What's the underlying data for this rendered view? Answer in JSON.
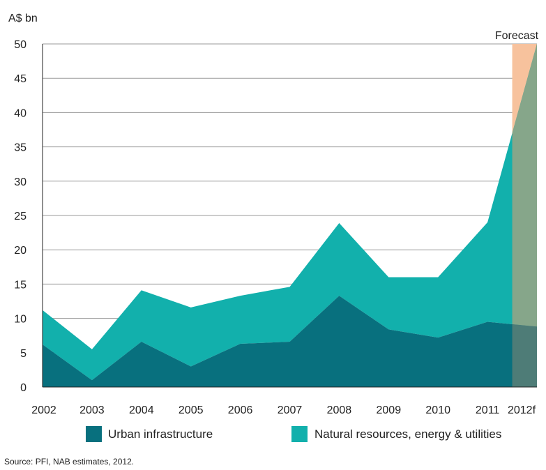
{
  "chart_data": {
    "type": "area",
    "ylabel": "A$ bn",
    "ylim": [
      0,
      50
    ],
    "yticks": [
      0,
      5,
      10,
      15,
      20,
      25,
      30,
      35,
      40,
      45,
      50
    ],
    "categories": [
      "2002",
      "2003",
      "2004",
      "2005",
      "2006",
      "2007",
      "2008",
      "2009",
      "2010",
      "2011",
      "2012f"
    ],
    "stacked": true,
    "grid": true,
    "series": [
      {
        "name": "Urban infrastructure",
        "color": "#08707E",
        "values": [
          6.2,
          1.0,
          6.6,
          3.0,
          6.3,
          6.6,
          13.3,
          8.4,
          7.2,
          9.5,
          8.8
        ]
      },
      {
        "name": "Natural resources, energy & utilities",
        "color": "#12B0AC",
        "values": [
          5.0,
          4.5,
          7.5,
          8.6,
          7.0,
          8.0,
          10.6,
          7.6,
          8.8,
          14.5,
          41.2
        ]
      }
    ],
    "forecast": {
      "label": "Forecast",
      "start_value": 2011.5,
      "color": "#F7C29D",
      "overlay_top": "#86A68A",
      "overlay_bottom": "#4E7C77"
    },
    "legend_position": "bottom",
    "source": "Source: PFI, NAB estimates, 2012."
  }
}
